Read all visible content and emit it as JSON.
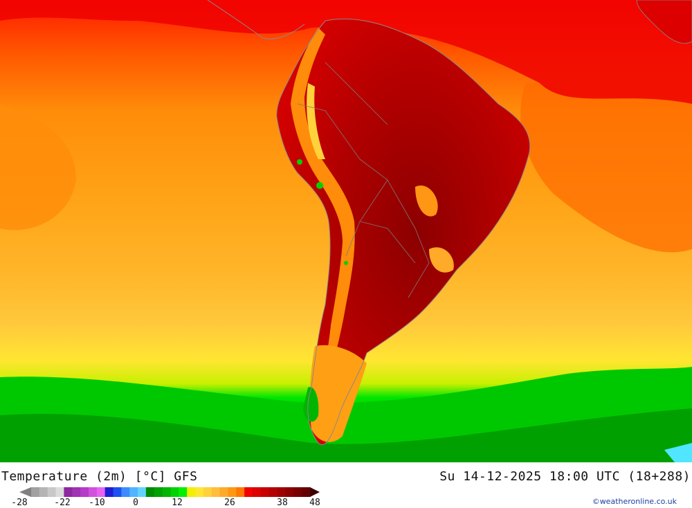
{
  "map": {
    "title": "Temperature (2m) [°C] GFS",
    "valid_time": "Su 14-12-2025 18:00 UTC (18+288)",
    "credit": "©weatheronline.co.uk",
    "region": "South America",
    "legend": {
      "unit": "°C",
      "tick_labels": [
        "-28",
        "-22",
        "-10",
        "0",
        "12",
        "26",
        "38",
        "48"
      ],
      "colors": [
        "#a0a0a0",
        "#b4b4b4",
        "#c8c8c8",
        "#dcdcdc",
        "#8c28a0",
        "#a032b4",
        "#b43cc8",
        "#d250dc",
        "#e664f0",
        "#1e1ed2",
        "#1e50f0",
        "#3c8cff",
        "#50b4ff",
        "#64d2ff",
        "#008c00",
        "#00a000",
        "#00b400",
        "#00d200",
        "#00f000",
        "#f0f000",
        "#ffe632",
        "#ffd23c",
        "#ffbe3c",
        "#ffaa28",
        "#ff9614",
        "#ff7800",
        "#f00000",
        "#dc0000",
        "#c80000",
        "#b40000",
        "#a00000",
        "#8c0000",
        "#780000",
        "#640000"
      ]
    }
  }
}
